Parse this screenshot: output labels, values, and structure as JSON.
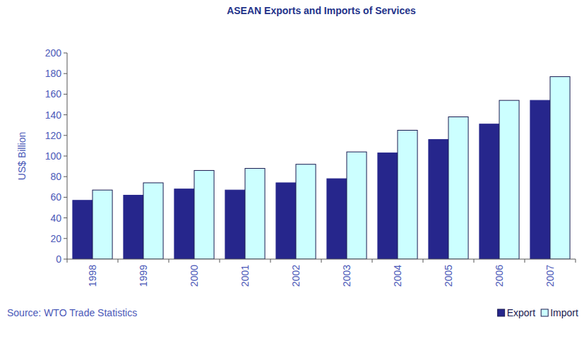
{
  "chart_data": {
    "type": "bar",
    "title": "ASEAN Exports and Imports of Services",
    "y_label": "US$ Billion",
    "annotations": [
      "Source: WTO Trade Statistics"
    ],
    "categories": [
      "1998",
      "1999",
      "2000",
      "2001",
      "2002",
      "2003",
      "2004",
      "2005",
      "2006",
      "2007"
    ],
    "series": [
      {
        "name": "Export",
        "color": "#26268c",
        "values": [
          57,
          62,
          68,
          67,
          74,
          78,
          103,
          116,
          131,
          154
        ]
      },
      {
        "name": "Import",
        "color": "#ccffff",
        "values": [
          67,
          74,
          86,
          88,
          92,
          104,
          125,
          138,
          154,
          177
        ]
      }
    ],
    "ylim": [
      0,
      200
    ],
    "yticks": [
      0,
      20,
      40,
      60,
      80,
      100,
      120,
      140,
      160,
      180,
      200
    ],
    "grid": false,
    "legend": "bottom-right"
  }
}
